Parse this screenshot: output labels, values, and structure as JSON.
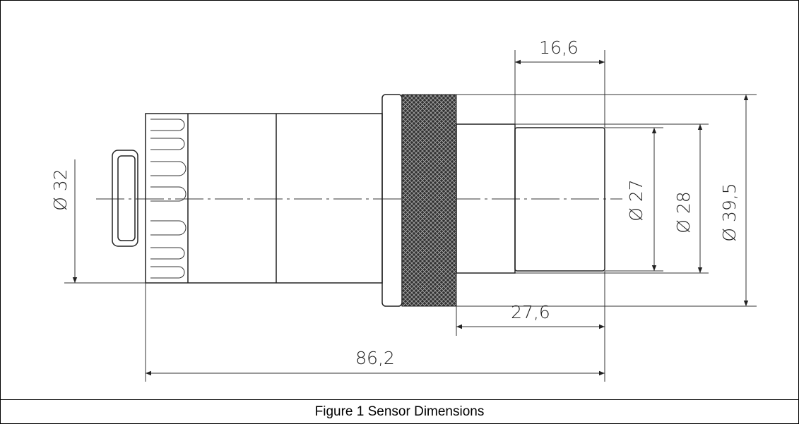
{
  "dimensions": [
    "16,6",
    "Ø 27",
    "Ø 28",
    "Ø 39,5",
    "Ø 32",
    "27,6",
    "86,2"
  ],
  "caption": "Figure 1  Sensor Dimensions"
}
